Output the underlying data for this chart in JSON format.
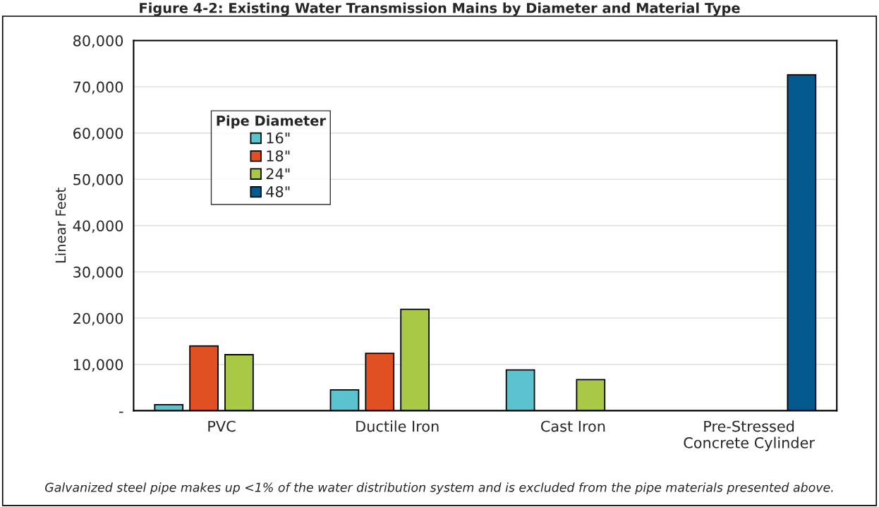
{
  "chart_data": {
    "type": "bar",
    "title": "Figure 4-2: Existing Water Transmission Mains by Diameter and Material Type",
    "ylabel": "Linear Feet",
    "legend_title": "Pipe Diameter",
    "categories": [
      "PVC",
      "Ductile Iron",
      "Cast Iron",
      "Pre-Stressed\nConcrete Cylinder"
    ],
    "series": [
      {
        "name": "16\"",
        "color": "#5bc2d0",
        "values": [
          1300,
          4500,
          8800,
          null
        ]
      },
      {
        "name": "18\"",
        "color": "#e05023",
        "values": [
          14000,
          12400,
          null,
          null
        ]
      },
      {
        "name": "24\"",
        "color": "#a8c846",
        "values": [
          12100,
          21900,
          6700,
          null
        ]
      },
      {
        "name": "48\"",
        "color": "#035a8f",
        "values": [
          null,
          null,
          null,
          72600
        ]
      }
    ],
    "ylim": [
      0,
      80000
    ],
    "yticks": [
      {
        "value": 0,
        "label": "-"
      },
      {
        "value": 10000,
        "label": "10,000"
      },
      {
        "value": 20000,
        "label": "20,000"
      },
      {
        "value": 30000,
        "label": "30,000"
      },
      {
        "value": 40000,
        "label": "40,000"
      },
      {
        "value": 50000,
        "label": "50,000"
      },
      {
        "value": 60000,
        "label": "60,000"
      },
      {
        "value": 70000,
        "label": "70,000"
      },
      {
        "value": 80000,
        "label": "80,000"
      }
    ],
    "grid": "y",
    "legend": "top left",
    "annotations": [
      "Galvanized steel pipe makes up <1% of the water distribution system and is excluded from the pipe materials presented above."
    ]
  }
}
